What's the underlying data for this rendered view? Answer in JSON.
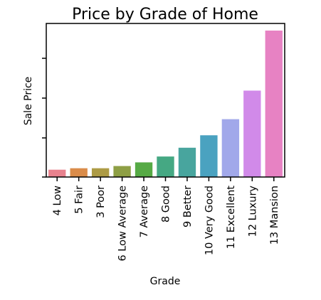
{
  "chart_data": {
    "type": "bar",
    "title": "Price by Grade of Home",
    "xlabel": "Grade",
    "ylabel": "Sale Price",
    "categories": [
      "4 Low",
      "5 Fair",
      "3 Poor",
      "6 Low Average",
      "7 Average",
      "8 Good",
      "9 Better",
      "10 Very Good",
      "11 Excellent",
      "12 Luxury",
      "13 Mansion"
    ],
    "values": [
      0.05,
      0.06,
      0.06,
      0.075,
      0.1,
      0.14,
      0.2,
      0.285,
      0.395,
      0.59,
      1.0
    ],
    "colors": [
      "#e8828e",
      "#da8c4a",
      "#ad9b45",
      "#8e9f45",
      "#56aa45",
      "#45a883",
      "#48a59e",
      "#4aa2c0",
      "#a1a8ea",
      "#d18ae9",
      "#e782c3"
    ],
    "y_tick_labels_shown": false,
    "y_tick_count": 5,
    "ylim": [
      0,
      1.0
    ],
    "grid": false,
    "legend": "none"
  }
}
